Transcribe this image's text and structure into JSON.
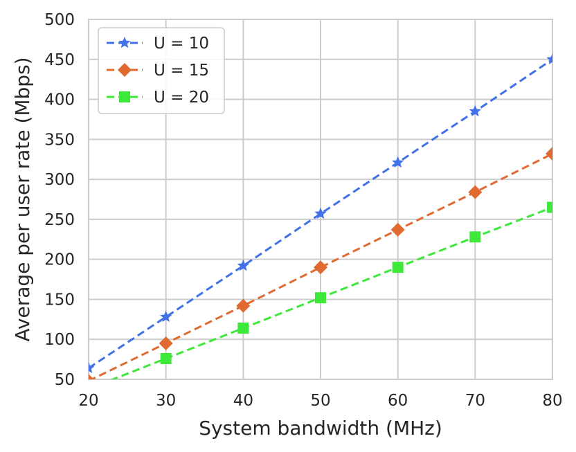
{
  "chart_data": {
    "type": "line",
    "xlabel": "System bandwidth (MHz)",
    "ylabel": "Average per user rate (Mbps)",
    "xlim": [
      20,
      80
    ],
    "ylim": [
      50,
      500
    ],
    "xticks": [
      "20",
      "30",
      "40",
      "50",
      "60",
      "70",
      "80"
    ],
    "yticks": [
      "50",
      "100",
      "150",
      "200",
      "250",
      "300",
      "350",
      "400",
      "450",
      "500"
    ],
    "grid": true,
    "legend_position": "top-left",
    "x": [
      20,
      30,
      40,
      50,
      60,
      70,
      80
    ],
    "series": [
      {
        "name": "U = 10",
        "color": "#4170e8",
        "marker": "star",
        "values": [
          64,
          128,
          192,
          257,
          321,
          385,
          450
        ]
      },
      {
        "name": "U = 15",
        "color": "#e06a31",
        "marker": "diamond",
        "values": [
          48,
          95,
          142,
          190,
          237,
          284,
          332
        ]
      },
      {
        "name": "U = 20",
        "color": "#3ee83a",
        "marker": "square",
        "values": [
          38,
          76,
          114,
          152,
          190,
          228,
          265
        ]
      }
    ]
  }
}
